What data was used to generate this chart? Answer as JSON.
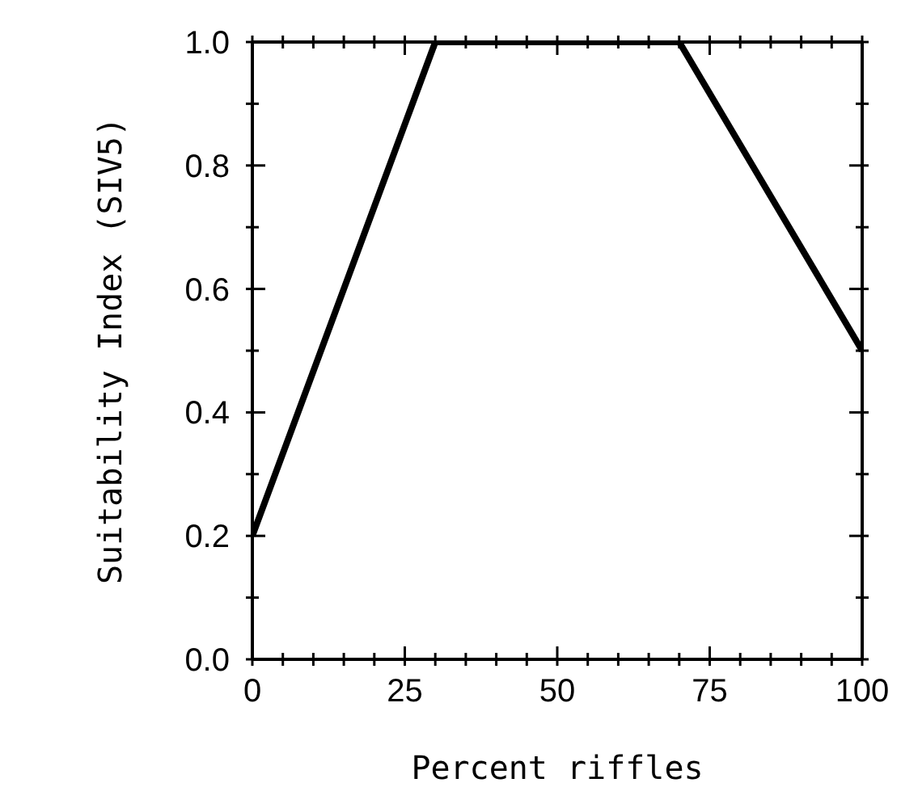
{
  "chart_data": {
    "type": "line",
    "xlabel": "Percent riffles",
    "ylabel": "Suitability Index (SIV5)",
    "x": [
      0,
      30,
      70,
      100
    ],
    "series": [
      {
        "color": "#000000",
        "values": [
          0.2,
          1.0,
          1.0,
          0.5
        ]
      }
    ],
    "xlim": [
      0,
      100
    ],
    "xticks": [
      0,
      {
        "value": 5,
        "label": null
      },
      {
        "value": 10,
        "label": null
      },
      {
        "value": 15,
        "label": null
      },
      {
        "value": 20,
        "label": null
      },
      25,
      {
        "value": 30,
        "label": null
      },
      {
        "value": 35,
        "label": null
      },
      {
        "value": 40,
        "label": null
      },
      {
        "value": 45,
        "label": null
      },
      50,
      {
        "value": 55,
        "label": null
      },
      {
        "value": 60,
        "label": null
      },
      {
        "value": 65,
        "label": null
      },
      {
        "value": 70,
        "label": null
      },
      75,
      {
        "value": 80,
        "label": null
      },
      {
        "value": 85,
        "label": null
      },
      {
        "value": 90,
        "label": null
      },
      {
        "value": 95,
        "label": null
      },
      100
    ],
    "ylim": [
      0,
      1
    ],
    "yticks": [
      {
        "value": 0,
        "label": "0.0"
      },
      {
        "value": 0.1,
        "label": null
      },
      {
        "value": 0.2,
        "label": "0.2"
      },
      {
        "value": 0.3,
        "label": null
      },
      {
        "value": 0.4,
        "label": "0.4"
      },
      {
        "value": 0.5,
        "label": null
      },
      {
        "value": 0.6,
        "label": "0.6"
      },
      {
        "value": 0.7,
        "label": null
      },
      {
        "value": 0.8,
        "label": "0.8"
      },
      {
        "value": 0.9,
        "label": null
      },
      {
        "value": 1,
        "label": "1.0"
      }
    ],
    "grid": false,
    "marker": "none",
    "line_style": "solid"
  }
}
